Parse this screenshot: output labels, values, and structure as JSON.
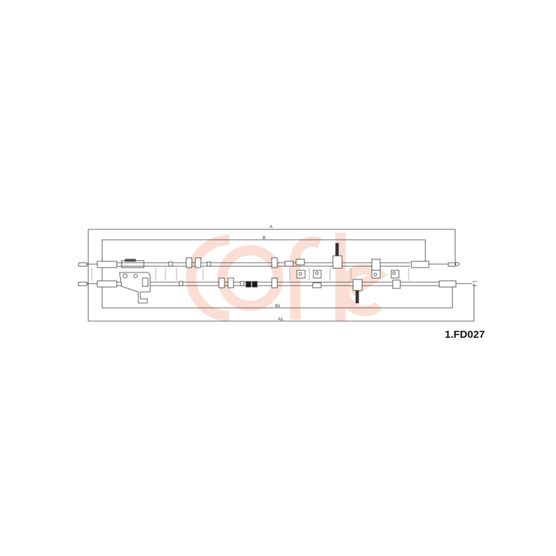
{
  "logo": {
    "text": "cofle",
    "color": "#f4a58a"
  },
  "part_number": "1.FD027",
  "dimensions": {
    "a": "A",
    "b": "B",
    "b1": "B1",
    "a1": "A1"
  },
  "colors": {
    "line": "#333333",
    "cable": "#555555",
    "sleeve": "#1a1a1a"
  }
}
